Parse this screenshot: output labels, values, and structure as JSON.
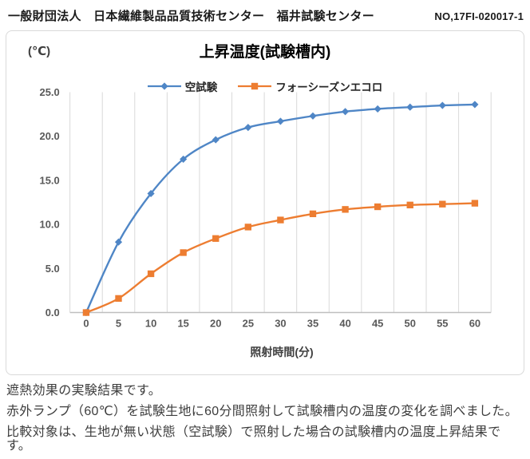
{
  "header": {
    "organization": "一般財団法人　日本繊維製品品質技術センター　福井試験センター",
    "report_no": "NO,17FI-020017-1"
  },
  "chart_data": {
    "type": "line",
    "title": "上昇温度(試験槽内)",
    "unit_label": "(℃)",
    "xlabel": "照射時間(分)",
    "ylabel": "(℃)",
    "categories": [
      "0",
      "5",
      "10",
      "15",
      "20",
      "25",
      "30",
      "35",
      "40",
      "45",
      "50",
      "55",
      "60"
    ],
    "y_ticks": [
      "25.0",
      "20.0",
      "15.0",
      "10.0",
      "5.0",
      "0.0"
    ],
    "ylim": [
      0,
      25
    ],
    "grid": "vertical-only",
    "legend_position": "top-center",
    "series": [
      {
        "name": "空試験",
        "color": "#4f86c6",
        "marker": "diamond",
        "values": [
          0.0,
          8.0,
          13.5,
          17.4,
          19.6,
          21.0,
          21.7,
          22.3,
          22.8,
          23.1,
          23.3,
          23.5,
          23.6
        ]
      },
      {
        "name": "フォーシーズンエコロ",
        "color": "#ed7d31",
        "marker": "square",
        "values": [
          0.0,
          1.6,
          4.4,
          6.8,
          8.4,
          9.7,
          10.5,
          11.2,
          11.7,
          12.0,
          12.2,
          12.3,
          12.4
        ]
      }
    ],
    "colors": {
      "gridline": "#d9d9d9",
      "axis": "#bfbfbf",
      "tick_label": "#595959"
    }
  },
  "footer": {
    "lines": [
      "遮熱効果の実験結果です。",
      "赤外ランプ（60℃）を試験生地に60分間照射して試験槽内の温度の変化を調べました。",
      "比較対象は、生地が無い状態（空試験）で照射した場合の試験槽内の温度上昇結果です。"
    ]
  }
}
